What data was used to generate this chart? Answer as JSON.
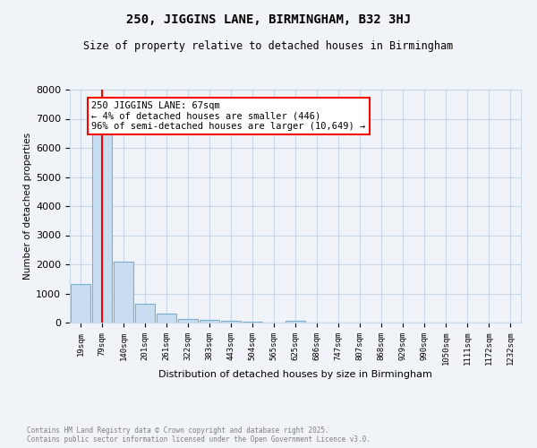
{
  "title": "250, JIGGINS LANE, BIRMINGHAM, B32 3HJ",
  "subtitle": "Size of property relative to detached houses in Birmingham",
  "xlabel": "Distribution of detached houses by size in Birmingham",
  "ylabel": "Number of detached properties",
  "categories": [
    "19sqm",
    "79sqm",
    "140sqm",
    "201sqm",
    "261sqm",
    "322sqm",
    "383sqm",
    "443sqm",
    "504sqm",
    "565sqm",
    "625sqm",
    "686sqm",
    "747sqm",
    "807sqm",
    "868sqm",
    "929sqm",
    "990sqm",
    "1050sqm",
    "1111sqm",
    "1172sqm",
    "1232sqm"
  ],
  "values": [
    1310,
    6620,
    2100,
    650,
    295,
    120,
    80,
    48,
    28,
    10,
    55,
    0,
    0,
    0,
    0,
    0,
    0,
    0,
    0,
    0,
    0
  ],
  "bar_color": "#c9ddf0",
  "bar_edge_color": "#7aadd4",
  "grid_color": "#c8d8e8",
  "background_color": "#f0f4f8",
  "red_line_x": 1,
  "annotation_text": "250 JIGGINS LANE: 67sqm\n← 4% of detached houses are smaller (446)\n96% of semi-detached houses are larger (10,649) →",
  "ylim": [
    0,
    8000
  ],
  "footnote": "Contains HM Land Registry data © Crown copyright and database right 2025.\nContains public sector information licensed under the Open Government Licence v3.0."
}
